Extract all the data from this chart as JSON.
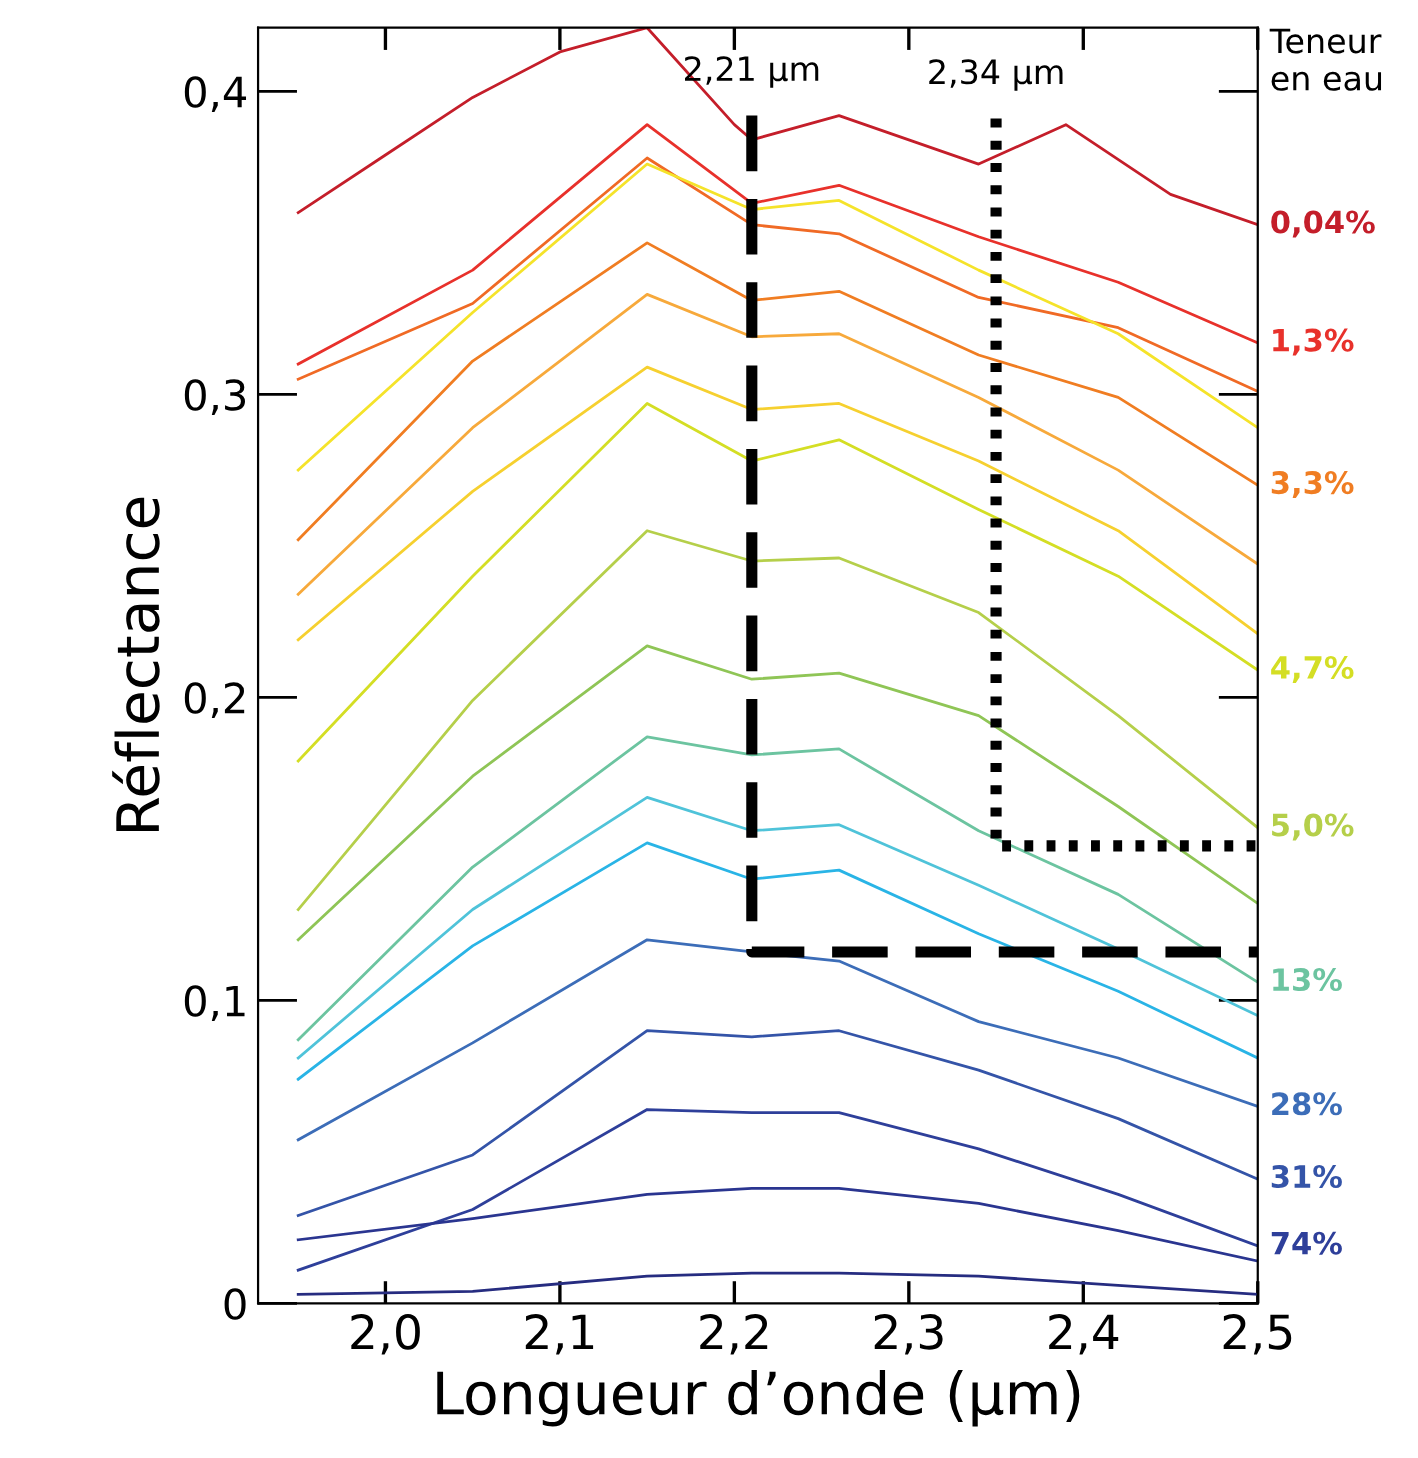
{
  "chart_data": {
    "type": "line",
    "xlabel": "Longueur d’onde (µm)",
    "ylabel": "Réflectance",
    "legend_title": "Teneur\nen eau",
    "x": [
      1.95,
      2.05,
      2.15,
      2.21,
      2.26,
      2.34,
      2.42,
      2.5
    ],
    "xlim": [
      1.927,
      2.5
    ],
    "ylim": [
      0,
      0.421
    ],
    "xticks": [
      {
        "value": 2.0,
        "label": "2,0"
      },
      {
        "value": 2.1,
        "label": "2,1"
      },
      {
        "value": 2.2,
        "label": "2,2"
      },
      {
        "value": 2.3,
        "label": "2,3"
      },
      {
        "value": 2.4,
        "label": "2,4"
      },
      {
        "value": 2.5,
        "label": "2,5"
      }
    ],
    "yticks": [
      0,
      {
        "value": 0.1,
        "label": "0,1"
      },
      {
        "value": 0.2,
        "label": "0,2"
      },
      {
        "value": 0.3,
        "label": "0,3"
      },
      {
        "value": 0.4,
        "label": "0,4"
      }
    ],
    "grid": false,
    "legend": false,
    "marker": "none",
    "series": [
      {
        "name": "0,04%",
        "color": "#c41e2a",
        "x": [
          1.95,
          2.0,
          2.05,
          2.1,
          2.15,
          2.2,
          2.21,
          2.26,
          2.34,
          2.39,
          2.45,
          2.5
        ],
        "values": [
          0.36,
          0.379,
          0.398,
          0.413,
          0.421,
          0.389,
          0.384,
          0.392,
          0.376,
          0.389,
          0.366,
          0.356
        ]
      },
      {
        "name": "1,3%",
        "color": "#e8312b",
        "values": [
          0.31,
          0.341,
          0.389,
          0.363,
          0.369,
          0.352,
          0.337,
          0.317
        ]
      },
      {
        "color": "#f06a25",
        "values": [
          0.305,
          0.33,
          0.378,
          0.356,
          0.353,
          0.332,
          0.322,
          0.301
        ]
      },
      {
        "color": "#f5e32a",
        "values": [
          0.275,
          0.327,
          0.376,
          0.361,
          0.364,
          0.341,
          0.32,
          0.289
        ]
      },
      {
        "name": "3,3%",
        "color": "#f07d22",
        "values": [
          0.252,
          0.311,
          0.35,
          0.331,
          0.334,
          0.313,
          0.299,
          0.27
        ]
      },
      {
        "color": "#f7a93b",
        "values": [
          0.234,
          0.289,
          0.333,
          0.319,
          0.32,
          0.299,
          0.275,
          0.244
        ]
      },
      {
        "color": "#f6d02f",
        "values": [
          0.219,
          0.268,
          0.309,
          0.295,
          0.297,
          0.278,
          0.255,
          0.221
        ]
      },
      {
        "name": "4,7%",
        "color": "#d4de24",
        "values": [
          0.179,
          0.24,
          0.297,
          0.278,
          0.285,
          0.262,
          0.24,
          0.209
        ]
      },
      {
        "name": "5,0%",
        "color": "#b5cf4a",
        "values": [
          0.13,
          0.199,
          0.255,
          0.245,
          0.246,
          0.228,
          0.194,
          0.157
        ]
      },
      {
        "color": "#8fc556",
        "values": [
          0.12,
          0.174,
          0.217,
          0.206,
          0.208,
          0.194,
          0.164,
          0.132
        ]
      },
      {
        "name": "13%",
        "color": "#6cc4a0",
        "values": [
          0.087,
          0.144,
          0.187,
          0.181,
          0.183,
          0.156,
          0.135,
          0.106
        ]
      },
      {
        "color": "#4fc3d9",
        "values": [
          0.081,
          0.13,
          0.167,
          0.156,
          0.158,
          0.138,
          0.117,
          0.095
        ]
      },
      {
        "color": "#29b4e6",
        "values": [
          0.074,
          0.118,
          0.152,
          0.14,
          0.143,
          0.122,
          0.103,
          0.081
        ]
      },
      {
        "name": "28%",
        "color": "#3c6db8",
        "values": [
          0.054,
          0.086,
          0.12,
          0.116,
          0.113,
          0.093,
          0.081,
          0.065
        ]
      },
      {
        "name": "31%",
        "color": "#3454a8",
        "values": [
          0.029,
          0.049,
          0.09,
          0.088,
          0.09,
          0.077,
          0.061,
          0.041
        ]
      },
      {
        "name": "74%",
        "color": "#2e3f9a",
        "values": [
          0.011,
          0.031,
          0.064,
          0.063,
          0.063,
          0.051,
          0.036,
          0.019
        ]
      },
      {
        "color": "#2a3590",
        "values": [
          0.021,
          0.028,
          0.036,
          0.038,
          0.038,
          0.033,
          0.024,
          0.014
        ]
      },
      {
        "color": "#262c80",
        "values": [
          0.003,
          0.004,
          0.009,
          0.01,
          0.01,
          0.009,
          0.006,
          0.003
        ]
      },
      {
        "color": "#000000",
        "line_style": "dashed",
        "x": [
          2.21,
          2.21,
          2.5
        ],
        "values": [
          0.392,
          0.116,
          0.116
        ]
      },
      {
        "color": "#000000",
        "line_style": "dotted",
        "x": [
          2.35,
          2.35,
          2.5
        ],
        "values": [
          0.391,
          0.151,
          0.151
        ]
      }
    ],
    "annotations": [
      {
        "text": "2,21 µm",
        "x": 2.21,
        "y": 0.392
      },
      {
        "text": "2,34 µm",
        "x": 2.35,
        "y": 0.391
      }
    ]
  }
}
